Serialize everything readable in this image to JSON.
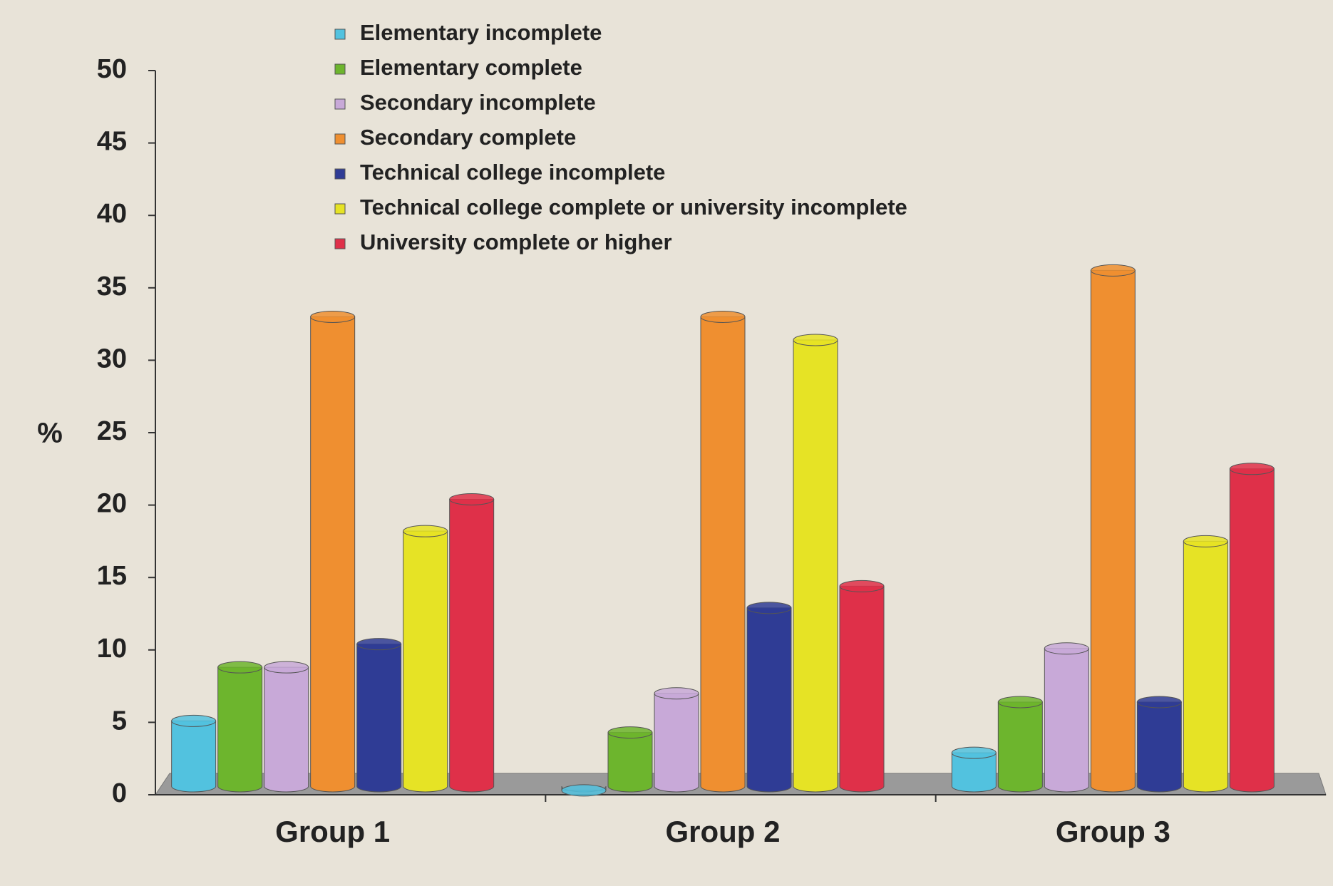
{
  "chart_data": {
    "type": "bar3d",
    "ylabel": "%",
    "categories": [
      "Group 1",
      "Group 2",
      "Group 3"
    ],
    "series": [
      {
        "name": "Elementary incomplete",
        "color": "#52c2df",
        "values": [
          5.1,
          0.3,
          2.9
        ]
      },
      {
        "name": "Elementary complete",
        "color": "#6db52d",
        "values": [
          8.8,
          4.3,
          6.4
        ]
      },
      {
        "name": "Secondary incomplete",
        "color": "#c8a9d8",
        "values": [
          8.8,
          7,
          10.1
        ]
      },
      {
        "name": "Secondary complete",
        "color": "#ef8f30",
        "values": [
          33,
          33,
          36.2
        ]
      },
      {
        "name": "Technical college incomplete",
        "color": "#2f3c95",
        "values": [
          10.4,
          12.9,
          6.4
        ]
      },
      {
        "name": "Technical college complete or university incomplete",
        "color": "#e6e325",
        "values": [
          18.2,
          31.4,
          17.5
        ]
      },
      {
        "name": "University complete or higher",
        "color": "#df3049",
        "values": [
          20.4,
          14.4,
          22.5
        ]
      }
    ],
    "ylim": [
      0,
      50
    ],
    "yticks": [
      0,
      5,
      10,
      15,
      20,
      25,
      30,
      35,
      40,
      45,
      50
    ]
  }
}
